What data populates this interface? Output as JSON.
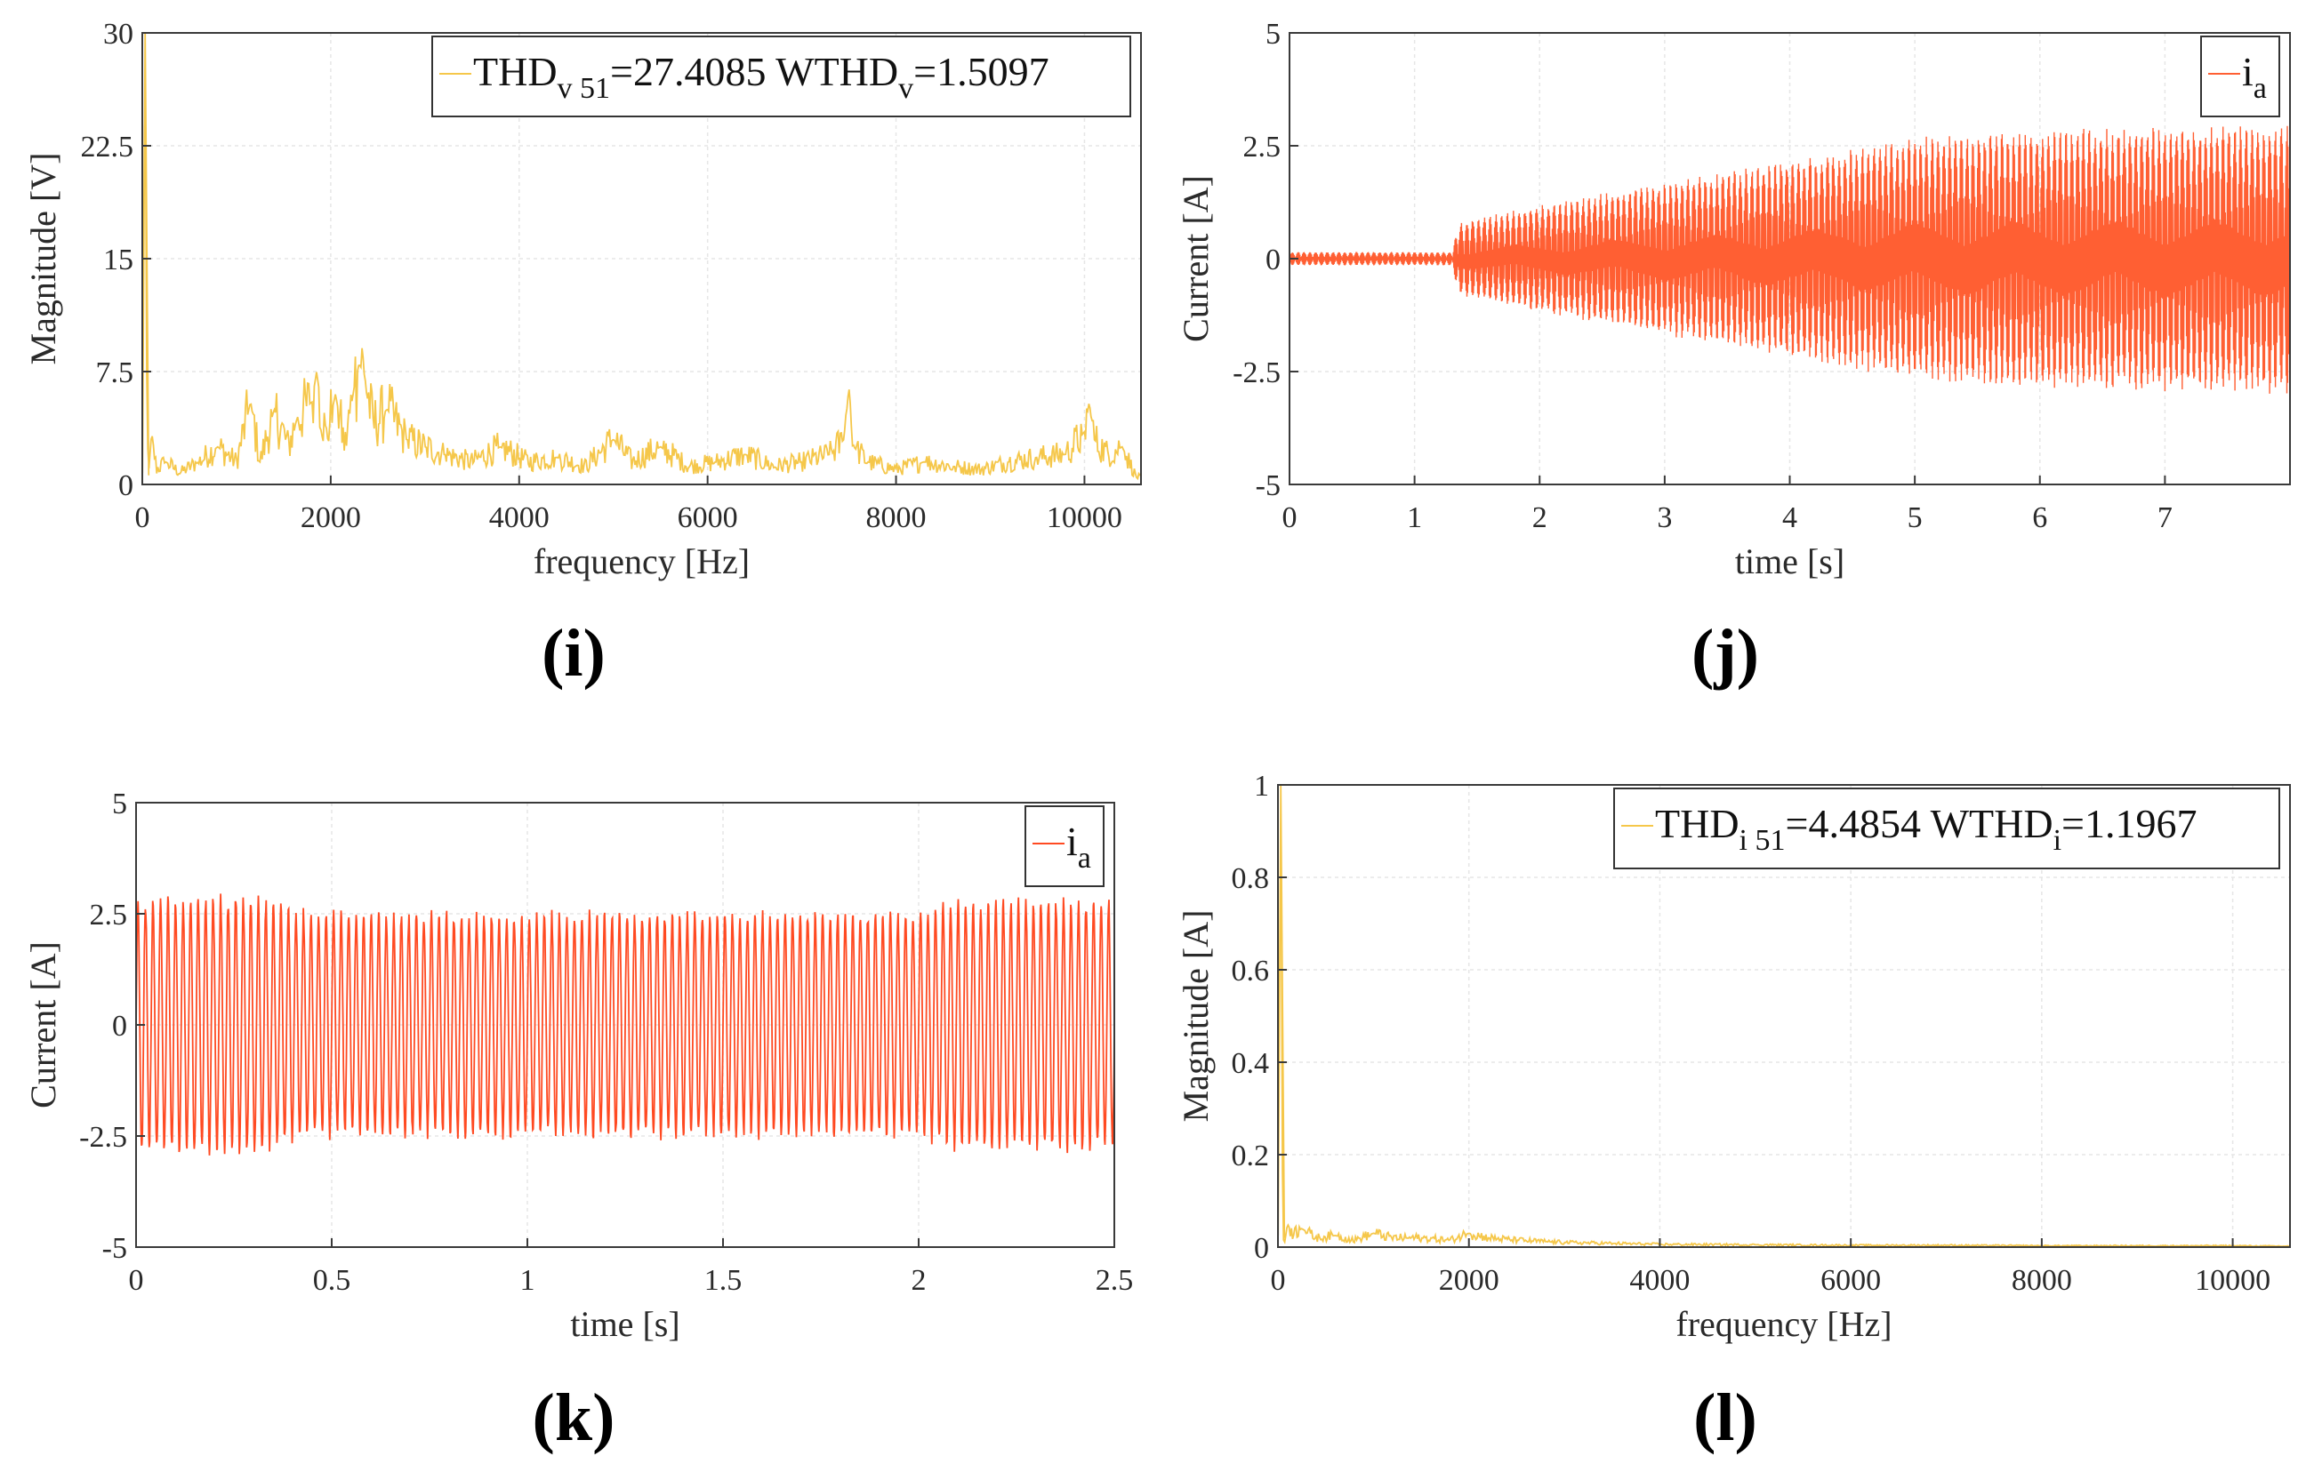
{
  "chart_data": [
    {
      "panel": "(i)",
      "type": "line",
      "xlabel": "frequency [Hz]",
      "ylabel": "Magnitude [V]",
      "xlim": [
        0,
        10600
      ],
      "ylim": [
        0,
        30
      ],
      "xticks": [
        "0",
        "2000",
        "4000",
        "6000",
        "8000",
        "10000"
      ],
      "xtick_values": [
        0,
        2000,
        4000,
        6000,
        8000,
        10000
      ],
      "yticks": [
        "0",
        "7.5",
        "15",
        "22.5",
        "30"
      ],
      "ytick_values": [
        0,
        7.5,
        15,
        22.5,
        30
      ],
      "grid": true,
      "legend_placement": "top-right",
      "legend": {
        "main": "THD",
        "sub1": "v 51",
        "mid": "=27.4085 WTHD",
        "sub2": "v",
        "end": "=1.5097"
      },
      "color": "#f5c74a",
      "series": [
        {
          "x": [
            0,
            30,
            50,
            70,
            100,
            150,
            250,
            400,
            600,
            800,
            1000,
            1150,
            1250,
            1400,
            1550,
            1650,
            1800,
            1850,
            1950,
            2050,
            2150,
            2250,
            2300,
            2350,
            2450,
            2600,
            2800,
            3000,
            3200,
            3500,
            3800,
            4100,
            4400,
            4700,
            5000,
            5200,
            5500,
            5800,
            6100,
            6400,
            6700,
            7000,
            7300,
            7450,
            7500,
            7550,
            7700,
            8000,
            8300,
            8600,
            8900,
            9200,
            9500,
            9800,
            10000,
            10050,
            10100,
            10250,
            10400,
            10550
          ],
          "y": [
            1.5,
            30,
            3.5,
            1.0,
            3.5,
            1.0,
            1.5,
            0.8,
            1.5,
            2.5,
            1.5,
            5.5,
            1.5,
            5.0,
            2.5,
            4.5,
            5.5,
            7.5,
            3.0,
            6.0,
            2.5,
            6.5,
            8.0,
            7.5,
            4.0,
            5.0,
            3.0,
            2.5,
            2.0,
            1.5,
            2.5,
            1.5,
            1.8,
            1.2,
            3.0,
            1.5,
            2.5,
            1.2,
            1.5,
            2.0,
            1.2,
            1.5,
            2.0,
            3.0,
            6.5,
            2.5,
            1.5,
            1.0,
            1.5,
            1.2,
            1.0,
            1.5,
            1.8,
            2.0,
            3.5,
            5.5,
            3.0,
            2.0,
            2.5,
            0.5
          ]
        }
      ]
    },
    {
      "panel": "(j)",
      "type": "line",
      "xlabel": "time [s]",
      "ylabel": "Current [A]",
      "xlim": [
        0,
        8
      ],
      "ylim": [
        -5,
        5
      ],
      "xticks": [
        "0",
        "1",
        "2",
        "3",
        "4",
        "5",
        "6",
        "7"
      ],
      "xtick_values": [
        0,
        1,
        2,
        3,
        4,
        5,
        6,
        7
      ],
      "yticks": [
        "-5",
        "-2.5",
        "0",
        "2.5",
        "5"
      ],
      "ytick_values": [
        -5,
        -2.5,
        0,
        2.5,
        5
      ],
      "grid": true,
      "legend_placement": "top-right",
      "legend": {
        "main": "i",
        "sub1": "a"
      },
      "color": "#ff5f33",
      "series": [
        {
          "name": "i_a",
          "envelope_t": [
            0,
            1.3,
            1.35,
            2,
            3,
            4,
            5,
            6,
            7,
            8
          ],
          "envelope_amp": [
            0.15,
            0.15,
            0.8,
            1.2,
            1.7,
            2.2,
            2.7,
            2.9,
            2.95,
            3.0
          ]
        }
      ]
    },
    {
      "panel": "(k)",
      "type": "line",
      "xlabel": "time [s]",
      "ylabel": "Current [A]",
      "xlim": [
        0,
        2.5
      ],
      "ylim": [
        -5,
        5
      ],
      "xticks": [
        "0",
        "0.5",
        "1",
        "1.5",
        "2",
        "2.5"
      ],
      "xtick_values": [
        0,
        0.5,
        1,
        1.5,
        2,
        2.5
      ],
      "yticks": [
        "-5",
        "-2.5",
        "0",
        "2.5",
        "5"
      ],
      "ytick_values": [
        -5,
        -2.5,
        0,
        2.5,
        5
      ],
      "grid": true,
      "legend_placement": "top-right",
      "legend": {
        "main": "i",
        "sub1": "a"
      },
      "color": "#ff4a22",
      "series": [
        {
          "name": "i_a",
          "envelope_t": [
            0,
            0.3,
            0.45,
            1.0,
            1.5,
            2.0,
            2.1,
            2.5
          ],
          "envelope_amp": [
            2.9,
            3.0,
            2.6,
            2.6,
            2.6,
            2.6,
            2.9,
            2.9
          ]
        }
      ]
    },
    {
      "panel": "(l)",
      "type": "line",
      "xlabel": "frequency [Hz]",
      "ylabel": "Magnitude [A]",
      "xlim": [
        0,
        10600
      ],
      "ylim": [
        0,
        1
      ],
      "xticks": [
        "0",
        "2000",
        "4000",
        "6000",
        "8000",
        "10000"
      ],
      "xtick_values": [
        0,
        2000,
        4000,
        6000,
        8000,
        10000
      ],
      "yticks": [
        "0",
        "0.2",
        "0.4",
        "0.6",
        "0.8",
        "1"
      ],
      "ytick_values": [
        0,
        0.2,
        0.4,
        0.6,
        0.8,
        1
      ],
      "grid": true,
      "legend_placement": "top-right",
      "legend": {
        "main": "THD",
        "sub1": "i 51",
        "mid": "=4.4854 WTHD",
        "sub2": "i",
        "end": "=1.1967"
      },
      "color": "#f5c74a",
      "series": [
        {
          "x": [
            0,
            30,
            50,
            70,
            100,
            150,
            250,
            400,
            600,
            800,
            1000,
            1200,
            1500,
            1800,
            2000,
            2200,
            2500,
            2800,
            3000,
            3500,
            4000,
            5000,
            6000,
            7000,
            8000,
            9000,
            10000,
            10600
          ],
          "y": [
            0.01,
            1.0,
            0.02,
            0.01,
            0.05,
            0.03,
            0.04,
            0.02,
            0.025,
            0.015,
            0.03,
            0.02,
            0.02,
            0.015,
            0.03,
            0.02,
            0.015,
            0.012,
            0.01,
            0.008,
            0.006,
            0.005,
            0.004,
            0.004,
            0.003,
            0.003,
            0.003,
            0.002
          ]
        }
      ]
    }
  ]
}
